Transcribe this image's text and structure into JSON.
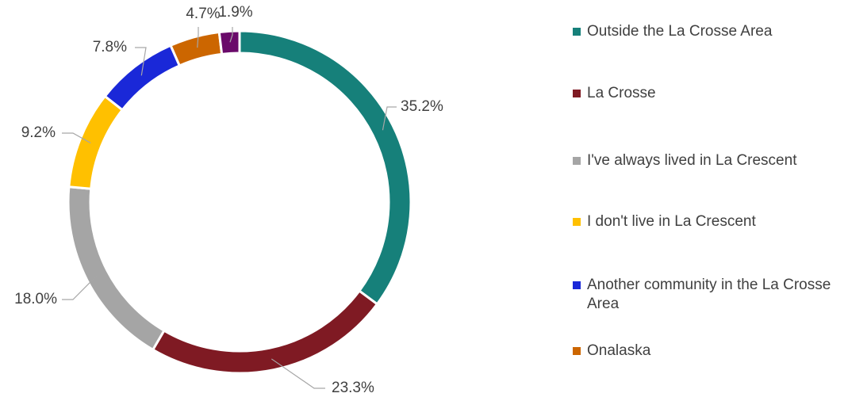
{
  "chart_data": {
    "type": "donut",
    "categories": [
      "Outside the La Crosse Area",
      "La Crosse",
      "I've always lived in La Crescent",
      "I don't live in La Crescent",
      "Another community in the La Crosse Area",
      "Onalaska",
      null
    ],
    "values": [
      35.2,
      23.3,
      18.0,
      9.2,
      7.8,
      4.7,
      1.9
    ],
    "value_labels": [
      "35.2%",
      "23.3%",
      "18.0%",
      "9.2%",
      "7.8%",
      "4.7%",
      "1.9%"
    ],
    "colors": [
      "#16807a",
      "#7f1a23",
      "#a5a5a5",
      "#ffc000",
      "#1a28d8",
      "#cc6600",
      "#6a0a6a"
    ],
    "legend": "right"
  }
}
